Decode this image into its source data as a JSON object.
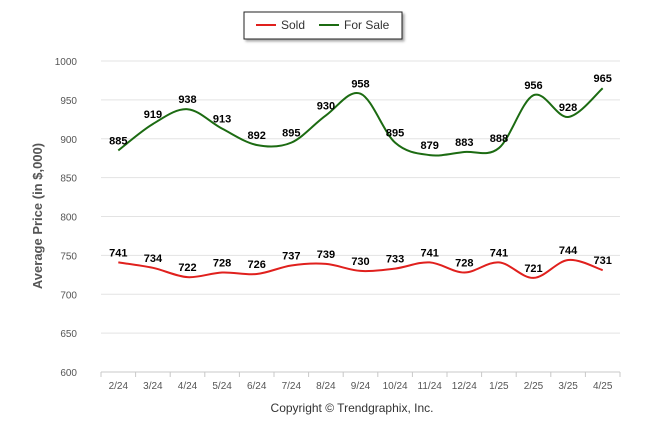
{
  "chart_data": {
    "type": "line",
    "categories": [
      "2/24",
      "3/24",
      "4/24",
      "5/24",
      "6/24",
      "7/24",
      "8/24",
      "9/24",
      "10/24",
      "11/24",
      "12/24",
      "1/25",
      "2/25",
      "3/25",
      "4/25"
    ],
    "series": [
      {
        "name": "Sold",
        "color": "#e0201d",
        "values": [
          741,
          734,
          722,
          728,
          726,
          737,
          739,
          730,
          733,
          741,
          728,
          741,
          721,
          744,
          731
        ]
      },
      {
        "name": "For Sale",
        "color": "#1c6b12",
        "values": [
          885,
          919,
          938,
          913,
          892,
          895,
          930,
          958,
          895,
          879,
          883,
          888,
          956,
          928,
          965
        ]
      }
    ],
    "ylabel": "Average Price (in $,000)",
    "ylim": [
      600,
      1000
    ],
    "yticks": [
      600,
      650,
      700,
      750,
      800,
      850,
      900,
      950,
      1000
    ],
    "grid": true,
    "legend_position": "top-center",
    "credit": "Copyright © Trendgraphix, Inc."
  }
}
